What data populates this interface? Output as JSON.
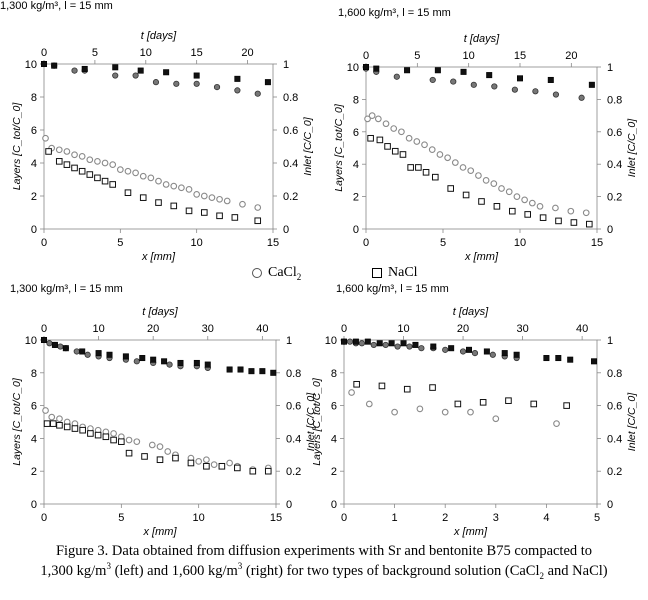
{
  "caption": {
    "line1": "Figure 3. Data obtained from diffusion experiments with Sr and bentonite B75 compacted to",
    "line2_a": "1,300 kg/m",
    "line2_b": " (left) and 1,600 kg/m",
    "line2_c": " (right) for two types of background solution (CaCl",
    "line2_d": " and NaCl)",
    "sup": "3",
    "sub": "2"
  },
  "legend": {
    "cacl2_text": "CaCl",
    "cacl2_sub": "2",
    "nacl_text": "NaCl"
  },
  "chart_data": [
    {
      "id": "p1",
      "type": "scatter",
      "title": "1,300 kg/m³, l = 15 mm",
      "xlabel": "x [mm]",
      "toplabel": "t [days]",
      "ylabel": "Layers [C_tot/C_0]",
      "y2label": "Inlet [C/C_0]",
      "xlim": [
        0,
        15
      ],
      "ylim": [
        0,
        10
      ],
      "x2lim": [
        0,
        22.5
      ],
      "y2lim": [
        0,
        1
      ],
      "xticks": [
        0,
        5,
        10,
        15
      ],
      "yticks": [
        0,
        2,
        4,
        6,
        8,
        10
      ],
      "x2ticks": [
        0,
        5,
        10,
        15,
        20
      ],
      "y2ticks": [
        0,
        0.2,
        0.4,
        0.6,
        0.8,
        1
      ],
      "series": [
        {
          "name": "CaCl2",
          "marker": "open-circle",
          "axes": "bottom-left",
          "x": [
            0.1,
            0.5,
            1.0,
            1.5,
            2.0,
            2.5,
            3.0,
            3.5,
            4.0,
            4.5,
            5.0,
            5.5,
            6.0,
            6.5,
            7.0,
            7.5,
            8.0,
            8.5,
            9.0,
            9.5,
            10.0,
            10.5,
            11.0,
            11.5,
            12.0,
            13.0,
            14.0
          ],
          "y": [
            5.5,
            4.9,
            4.8,
            4.7,
            4.5,
            4.4,
            4.2,
            4.1,
            4.0,
            3.9,
            3.6,
            3.5,
            3.4,
            3.2,
            3.1,
            2.9,
            2.7,
            2.6,
            2.5,
            2.4,
            2.1,
            2.0,
            1.9,
            1.8,
            1.7,
            1.5,
            1.3
          ]
        },
        {
          "name": "NaCl",
          "marker": "open-square",
          "axes": "bottom-left",
          "x": [
            0.3,
            1.0,
            1.5,
            2.0,
            2.5,
            3.0,
            3.5,
            4.0,
            4.5,
            5.5,
            6.5,
            7.5,
            8.5,
            9.5,
            10.5,
            11.5,
            12.5,
            14.0
          ],
          "y": [
            4.7,
            4.1,
            3.9,
            3.7,
            3.5,
            3.3,
            3.1,
            2.9,
            2.7,
            2.2,
            1.9,
            1.6,
            1.4,
            1.1,
            1.0,
            0.8,
            0.7,
            0.5
          ]
        },
        {
          "name": "CaCl2 inlet",
          "marker": "filled-circle",
          "axes": "top-right",
          "x": [
            0,
            1,
            3,
            4,
            7,
            9,
            11,
            13,
            15,
            17,
            19,
            21
          ],
          "y": [
            1.0,
            0.99,
            0.96,
            0.96,
            0.93,
            0.93,
            0.89,
            0.88,
            0.88,
            0.86,
            0.84,
            0.82
          ]
        },
        {
          "name": "NaCl inlet",
          "marker": "filled-square",
          "axes": "top-right",
          "x": [
            0,
            1,
            4,
            7,
            9.5,
            12,
            15,
            19,
            22
          ],
          "y": [
            1.0,
            0.99,
            0.97,
            0.98,
            0.96,
            0.95,
            0.93,
            0.91,
            0.89
          ]
        }
      ]
    },
    {
      "id": "p2",
      "type": "scatter",
      "title": "1,600 kg/m³, l = 15 mm",
      "xlabel": "x [mm]",
      "toplabel": "t [days]",
      "ylabel": "Layers [C_tot/C_0]",
      "y2label": "Inlet [C/C_0]",
      "xlim": [
        0,
        15
      ],
      "ylim": [
        0,
        10
      ],
      "x2lim": [
        0,
        22.5
      ],
      "y2lim": [
        0,
        1
      ],
      "xticks": [
        0,
        5,
        10,
        15
      ],
      "yticks": [
        0,
        2,
        4,
        6,
        8,
        10
      ],
      "x2ticks": [
        0,
        5,
        10,
        15,
        20
      ],
      "y2ticks": [
        0,
        0.2,
        0.4,
        0.6,
        0.8,
        1
      ],
      "series": [
        {
          "name": "CaCl2",
          "marker": "open-circle",
          "axes": "bottom-left",
          "x": [
            0.1,
            0.4,
            0.8,
            1.3,
            1.8,
            2.3,
            2.8,
            3.3,
            3.8,
            4.3,
            4.8,
            5.3,
            5.8,
            6.3,
            6.8,
            7.3,
            7.8,
            8.3,
            8.8,
            9.3,
            9.8,
            10.3,
            10.8,
            11.3,
            12.3,
            13.3,
            14.3
          ],
          "y": [
            6.8,
            7.0,
            6.8,
            6.5,
            6.2,
            6.0,
            5.6,
            5.4,
            5.2,
            4.9,
            4.6,
            4.4,
            4.1,
            3.8,
            3.6,
            3.3,
            3.0,
            2.8,
            2.5,
            2.3,
            2.0,
            1.8,
            1.6,
            1.4,
            1.3,
            1.1,
            1.0
          ]
        },
        {
          "name": "NaCl",
          "marker": "open-square",
          "axes": "bottom-left",
          "x": [
            0.3,
            0.9,
            1.4,
            1.9,
            2.4,
            2.9,
            3.4,
            3.9,
            4.5,
            5.5,
            6.5,
            7.5,
            8.5,
            9.5,
            10.5,
            11.5,
            12.5,
            13.5,
            14.5
          ],
          "y": [
            5.6,
            5.5,
            5.1,
            4.8,
            4.6,
            3.8,
            3.8,
            3.5,
            3.2,
            2.5,
            2.1,
            1.7,
            1.4,
            1.1,
            0.9,
            0.7,
            0.5,
            0.4,
            0.3
          ]
        },
        {
          "name": "CaCl2 inlet",
          "marker": "filled-circle",
          "axes": "top-right",
          "x": [
            0,
            1,
            3,
            6.5,
            8.5,
            10.5,
            12.5,
            14.5,
            16.5,
            18.5,
            21
          ],
          "y": [
            0.99,
            0.97,
            0.94,
            0.92,
            0.91,
            0.89,
            0.88,
            0.86,
            0.85,
            0.83,
            0.81
          ]
        },
        {
          "name": "NaCl inlet",
          "marker": "filled-square",
          "axes": "top-right",
          "x": [
            0,
            1,
            4,
            7,
            9.5,
            12,
            15,
            18,
            22
          ],
          "y": [
            1.0,
            0.99,
            0.98,
            0.98,
            0.97,
            0.95,
            0.93,
            0.92,
            0.89
          ]
        }
      ]
    },
    {
      "id": "p3",
      "type": "scatter",
      "title": "1,300 kg/m³, l = 15 mm",
      "xlabel": "x [mm]",
      "toplabel": "t [days]",
      "ylabel": "Layers [C_tot/C_0]",
      "y2label": "Inlet [C/C_0]",
      "xlim": [
        0,
        15
      ],
      "ylim": [
        0,
        10
      ],
      "x2lim": [
        0,
        42.5
      ],
      "y2lim": [
        0,
        1
      ],
      "xticks": [
        0,
        5,
        10,
        15
      ],
      "yticks": [
        0,
        2,
        4,
        6,
        8,
        10
      ],
      "x2ticks": [
        0,
        10,
        20,
        30,
        40
      ],
      "y2ticks": [
        0,
        0.2,
        0.4,
        0.6,
        0.8,
        1
      ],
      "series": [
        {
          "name": "CaCl2",
          "marker": "open-circle",
          "axes": "bottom-left",
          "x": [
            0.1,
            0.5,
            1.0,
            1.5,
            2.0,
            2.5,
            3.0,
            3.5,
            4.0,
            4.5,
            5.0,
            5.5,
            6.0,
            7.0,
            7.5,
            8.0,
            8.5,
            9.5,
            10.0,
            10.5,
            11.0,
            12.0,
            12.5,
            13.5,
            14.5
          ],
          "y": [
            5.7,
            5.3,
            5.2,
            5.0,
            4.9,
            4.7,
            4.6,
            4.5,
            4.4,
            4.3,
            4.1,
            3.9,
            3.8,
            3.6,
            3.5,
            3.2,
            3.0,
            2.8,
            2.6,
            2.7,
            2.4,
            2.5,
            2.3,
            2.1,
            2.2
          ]
        },
        {
          "name": "NaCl",
          "marker": "open-square",
          "axes": "bottom-left",
          "x": [
            0.2,
            0.6,
            1.0,
            1.5,
            2.0,
            2.5,
            3.0,
            3.5,
            4.0,
            4.5,
            5.0,
            5.5,
            6.5,
            7.5,
            8.5,
            9.5,
            10.5,
            11.5,
            12.5,
            13.5,
            14.5
          ],
          "y": [
            4.9,
            4.9,
            4.8,
            4.7,
            4.6,
            4.5,
            4.3,
            4.2,
            4.1,
            3.9,
            3.8,
            3.1,
            2.9,
            2.7,
            2.8,
            2.5,
            2.3,
            2.3,
            2.2,
            2.0,
            2.0
          ]
        },
        {
          "name": "CaCl2 inlet",
          "marker": "filled-circle",
          "axes": "top-right",
          "x": [
            0,
            1,
            2,
            3,
            4,
            6,
            8,
            10,
            12,
            15,
            17,
            20,
            23,
            25,
            28,
            30
          ],
          "y": [
            1.0,
            0.98,
            0.97,
            0.96,
            0.95,
            0.93,
            0.91,
            0.9,
            0.89,
            0.88,
            0.87,
            0.86,
            0.85,
            0.84,
            0.84,
            0.83
          ]
        },
        {
          "name": "NaCl inlet",
          "marker": "filled-square",
          "axes": "top-right",
          "x": [
            0,
            2,
            4,
            7,
            10,
            12,
            15,
            18,
            20,
            22,
            25,
            28,
            30,
            34,
            36,
            38,
            40,
            42
          ],
          "y": [
            1.0,
            0.97,
            0.95,
            0.93,
            0.92,
            0.91,
            0.9,
            0.89,
            0.88,
            0.87,
            0.86,
            0.86,
            0.85,
            0.82,
            0.82,
            0.81,
            0.81,
            0.8
          ]
        }
      ]
    },
    {
      "id": "p4",
      "type": "scatter",
      "title": "1,600 kg/m³, l = 15 mm",
      "xlabel": "x [mm]",
      "toplabel": "t [days]",
      "ylabel": "Layers [C_tot/C_0]",
      "y2label": "Inlet [C/C_0]",
      "xlim": [
        0,
        5
      ],
      "ylim": [
        0,
        10
      ],
      "x2lim": [
        0,
        42.5
      ],
      "y2lim": [
        0,
        1
      ],
      "xticks": [
        0,
        1,
        2,
        3,
        4,
        5
      ],
      "yticks": [
        0,
        2,
        4,
        6,
        8,
        10
      ],
      "x2ticks": [
        0,
        10,
        20,
        30,
        40
      ],
      "y2ticks": [
        0,
        0.2,
        0.4,
        0.6,
        0.8,
        1
      ],
      "series": [
        {
          "name": "CaCl2",
          "marker": "open-circle",
          "axes": "bottom-left",
          "x": [
            0.15,
            0.5,
            1.0,
            1.5,
            2.0,
            2.5,
            3.0,
            4.2
          ],
          "y": [
            6.8,
            6.1,
            5.6,
            5.8,
            5.6,
            5.6,
            5.2,
            4.9
          ]
        },
        {
          "name": "NaCl",
          "marker": "open-square",
          "axes": "bottom-left",
          "x": [
            0.25,
            0.75,
            1.25,
            1.75,
            2.25,
            2.75,
            3.25,
            3.75,
            4.4
          ],
          "y": [
            7.3,
            7.2,
            7.0,
            7.1,
            6.1,
            6.2,
            6.3,
            6.1,
            6.0
          ]
        },
        {
          "name": "CaCl2 inlet",
          "marker": "filled-circle",
          "axes": "top-right",
          "x": [
            0,
            1,
            2,
            3,
            5,
            7,
            9,
            11,
            13,
            15,
            17,
            20,
            22,
            25,
            27,
            29
          ],
          "y": [
            0.99,
            0.99,
            0.98,
            0.98,
            0.97,
            0.97,
            0.96,
            0.96,
            0.95,
            0.95,
            0.94,
            0.93,
            0.92,
            0.91,
            0.9,
            0.89
          ]
        },
        {
          "name": "NaCl inlet",
          "marker": "filled-square",
          "axes": "top-right",
          "x": [
            0,
            2,
            4,
            6,
            8,
            10,
            12,
            15,
            18,
            21,
            24,
            27,
            29,
            34,
            36,
            38,
            42
          ],
          "y": [
            0.99,
            0.99,
            0.99,
            0.98,
            0.98,
            0.98,
            0.97,
            0.96,
            0.95,
            0.94,
            0.93,
            0.92,
            0.91,
            0.89,
            0.89,
            0.88,
            0.87
          ]
        }
      ]
    }
  ]
}
